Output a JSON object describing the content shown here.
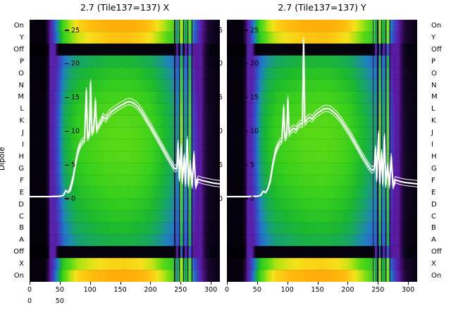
{
  "figure": {
    "bg": "#ffffff",
    "dipole_label": "Dipole",
    "line_color": "#ffffff"
  },
  "dipole_rows": [
    "On",
    "Y",
    "Off",
    "P",
    "O",
    "N",
    "M",
    "L",
    "K",
    "J",
    "I",
    "H",
    "G",
    "F",
    "E",
    "D",
    "C",
    "B",
    "A",
    "Off",
    "X",
    "On"
  ],
  "line_ticks": [
    25,
    20,
    15,
    10,
    5,
    0
  ],
  "extra_ticks": [
    0,
    50
  ],
  "palette": [
    [
      0.0,
      "#000004"
    ],
    [
      0.05,
      "#0a0418"
    ],
    [
      0.12,
      "#1f0838"
    ],
    [
      0.2,
      "#3d0d66"
    ],
    [
      0.28,
      "#5a1ba4"
    ],
    [
      0.36,
      "#4936bc"
    ],
    [
      0.44,
      "#2e57c8"
    ],
    [
      0.52,
      "#1f82be"
    ],
    [
      0.6,
      "#17a468"
    ],
    [
      0.68,
      "#1cb92e"
    ],
    [
      0.76,
      "#37cf1d"
    ],
    [
      0.84,
      "#58d916"
    ],
    [
      0.92,
      "#b4e312"
    ],
    [
      0.98,
      "#f6e11a"
    ],
    [
      1.06,
      "#ffbb0e"
    ],
    [
      1.25,
      "#ff8c00"
    ]
  ],
  "chart_data": [
    {
      "type": "heatmap+line",
      "title": "2.7 (Tile137=137) X",
      "x_range": [
        0,
        315
      ],
      "x_ticks": [
        0,
        50,
        100,
        150,
        200,
        250,
        300
      ],
      "line_value_ticks": [
        0,
        5,
        10,
        15,
        20,
        25
      ],
      "rows": [
        "On",
        "Y",
        "Off",
        "P",
        "O",
        "N",
        "M",
        "L",
        "K",
        "J",
        "I",
        "H",
        "G",
        "F",
        "E",
        "D",
        "C",
        "B",
        "A",
        "Off",
        "X",
        "On"
      ],
      "row_factors": [
        1.3,
        1.22,
        0.03,
        0.78,
        0.84,
        0.88,
        0.92,
        0.95,
        0.97,
        0.98,
        0.98,
        0.97,
        0.95,
        0.93,
        0.9,
        0.87,
        0.84,
        0.8,
        0.76,
        0.03,
        1.18,
        1.3
      ],
      "x_profile": [
        [
          0,
          0.02
        ],
        [
          26,
          0.02
        ],
        [
          33,
          0.18
        ],
        [
          40,
          0.32
        ],
        [
          48,
          0.46
        ],
        [
          56,
          0.62
        ],
        [
          68,
          0.71
        ],
        [
          80,
          0.77
        ],
        [
          100,
          0.81
        ],
        [
          130,
          0.85
        ],
        [
          160,
          0.86
        ],
        [
          180,
          0.84
        ],
        [
          200,
          0.8
        ],
        [
          215,
          0.74
        ],
        [
          228,
          0.68
        ],
        [
          240,
          0.63
        ],
        [
          252,
          0.6
        ],
        [
          262,
          0.56
        ],
        [
          268,
          0.46
        ],
        [
          278,
          0.3
        ],
        [
          288,
          0.18
        ],
        [
          296,
          0.08
        ],
        [
          315,
          0.03
        ]
      ],
      "band_profile": [
        [
          0,
          0
        ],
        [
          30,
          0
        ],
        [
          34,
          0.3
        ],
        [
          42,
          0.3
        ],
        [
          48,
          0
        ],
        [
          256,
          0
        ],
        [
          263,
          0.26
        ],
        [
          284,
          0.28
        ],
        [
          292,
          0.1
        ],
        [
          300,
          0.02
        ],
        [
          315,
          0.02
        ]
      ],
      "stripes": [
        [
          239,
          2,
          0.16
        ],
        [
          243,
          3,
          0.55
        ],
        [
          247,
          2,
          0.1
        ],
        [
          250,
          3,
          0.92
        ],
        [
          254,
          2,
          0.16
        ],
        [
          257,
          3,
          0.6
        ],
        [
          261,
          2,
          0.1
        ],
        [
          264,
          3,
          0.85
        ],
        [
          268,
          2,
          0.12
        ]
      ],
      "line": [
        [
          0,
          0.3
        ],
        [
          30,
          0.3
        ],
        [
          50,
          0.35
        ],
        [
          56,
          0.5
        ],
        [
          60,
          1.2
        ],
        [
          64,
          0.9
        ],
        [
          68,
          1.6
        ],
        [
          72,
          3.0
        ],
        [
          76,
          5.2
        ],
        [
          80,
          7.0
        ],
        [
          84,
          8.0
        ],
        [
          88,
          8.5
        ],
        [
          91,
          8.8
        ],
        [
          94,
          16.0
        ],
        [
          96,
          9.0
        ],
        [
          99,
          9.5
        ],
        [
          101,
          17.2
        ],
        [
          103,
          9.8
        ],
        [
          106,
          10.3
        ],
        [
          109,
          14.5
        ],
        [
          111,
          10.2
        ],
        [
          114,
          10.8
        ],
        [
          118,
          11.4
        ],
        [
          122,
          12.2
        ],
        [
          126,
          11.8
        ],
        [
          130,
          12.4
        ],
        [
          135,
          12.9
        ],
        [
          140,
          13.2
        ],
        [
          145,
          13.5
        ],
        [
          150,
          13.8
        ],
        [
          155,
          14.0
        ],
        [
          160,
          14.3
        ],
        [
          165,
          14.4
        ],
        [
          170,
          14.3
        ],
        [
          175,
          14.0
        ],
        [
          180,
          13.6
        ],
        [
          185,
          13.0
        ],
        [
          190,
          12.3
        ],
        [
          195,
          11.5
        ],
        [
          200,
          10.8
        ],
        [
          205,
          10.0
        ],
        [
          210,
          9.2
        ],
        [
          215,
          8.4
        ],
        [
          220,
          7.6
        ],
        [
          225,
          6.8
        ],
        [
          230,
          6.0
        ],
        [
          234,
          5.4
        ],
        [
          238,
          4.8
        ],
        [
          241,
          4.4
        ],
        [
          244,
          4.6
        ],
        [
          246,
          8.2
        ],
        [
          248,
          3.0
        ],
        [
          251,
          7.6
        ],
        [
          253,
          2.6
        ],
        [
          256,
          6.2
        ],
        [
          258,
          2.3
        ],
        [
          261,
          8.8
        ],
        [
          263,
          2.1
        ],
        [
          266,
          5.2
        ],
        [
          269,
          2.0
        ],
        [
          272,
          6.6
        ],
        [
          275,
          1.9
        ],
        [
          279,
          2.9
        ],
        [
          285,
          2.7
        ],
        [
          295,
          2.5
        ],
        [
          305,
          2.3
        ],
        [
          315,
          2.2
        ]
      ]
    },
    {
      "type": "heatmap+line",
      "title": "2.7 (Tile137=137) Y",
      "x_range": [
        0,
        315
      ],
      "x_ticks": [
        0,
        50,
        100,
        150,
        200,
        250,
        300
      ],
      "line_value_ticks": [
        0,
        5,
        10,
        15,
        20,
        25
      ],
      "rows": [
        "On",
        "Y",
        "Off",
        "P",
        "O",
        "N",
        "M",
        "L",
        "K",
        "J",
        "I",
        "H",
        "G",
        "F",
        "E",
        "D",
        "C",
        "B",
        "A",
        "Off",
        "X",
        "On"
      ],
      "row_factors": [
        1.3,
        1.22,
        0.03,
        0.78,
        0.84,
        0.88,
        0.92,
        0.95,
        0.97,
        0.98,
        0.98,
        0.97,
        0.95,
        0.93,
        0.9,
        0.87,
        0.84,
        0.8,
        0.76,
        0.03,
        1.18,
        1.3
      ],
      "x_profile": [
        [
          0,
          0.02
        ],
        [
          26,
          0.02
        ],
        [
          33,
          0.18
        ],
        [
          40,
          0.32
        ],
        [
          48,
          0.46
        ],
        [
          56,
          0.62
        ],
        [
          68,
          0.71
        ],
        [
          80,
          0.77
        ],
        [
          100,
          0.81
        ],
        [
          130,
          0.85
        ],
        [
          160,
          0.86
        ],
        [
          180,
          0.84
        ],
        [
          200,
          0.8
        ],
        [
          215,
          0.74
        ],
        [
          228,
          0.68
        ],
        [
          240,
          0.63
        ],
        [
          252,
          0.6
        ],
        [
          262,
          0.56
        ],
        [
          268,
          0.46
        ],
        [
          278,
          0.3
        ],
        [
          288,
          0.18
        ],
        [
          296,
          0.08
        ],
        [
          315,
          0.03
        ]
      ],
      "band_profile": [
        [
          0,
          0
        ],
        [
          30,
          0
        ],
        [
          34,
          0.3
        ],
        [
          42,
          0.3
        ],
        [
          48,
          0
        ],
        [
          256,
          0
        ],
        [
          263,
          0.26
        ],
        [
          284,
          0.28
        ],
        [
          292,
          0.1
        ],
        [
          300,
          0.02
        ],
        [
          315,
          0.02
        ]
      ],
      "stripes": [
        [
          241,
          2,
          0.16
        ],
        [
          245,
          3,
          0.6
        ],
        [
          249,
          2,
          0.12
        ],
        [
          252,
          2,
          0.9
        ],
        [
          255,
          2,
          0.16
        ],
        [
          258,
          3,
          0.65
        ],
        [
          262,
          2,
          0.1
        ],
        [
          265,
          3,
          0.88
        ],
        [
          269,
          2,
          0.12
        ]
      ],
      "line": [
        [
          0,
          0.3
        ],
        [
          30,
          0.3
        ],
        [
          50,
          0.35
        ],
        [
          56,
          0.5
        ],
        [
          60,
          1.1
        ],
        [
          64,
          0.9
        ],
        [
          68,
          1.5
        ],
        [
          72,
          2.8
        ],
        [
          76,
          5.0
        ],
        [
          80,
          6.8
        ],
        [
          84,
          7.8
        ],
        [
          88,
          8.4
        ],
        [
          91,
          8.7
        ],
        [
          94,
          13.5
        ],
        [
          96,
          9.0
        ],
        [
          99,
          9.4
        ],
        [
          101,
          14.8
        ],
        [
          103,
          9.7
        ],
        [
          106,
          10.1
        ],
        [
          110,
          10.5
        ],
        [
          114,
          10.2
        ],
        [
          118,
          10.8
        ],
        [
          122,
          11.2
        ],
        [
          125,
          11.0
        ],
        [
          127,
          23.5
        ],
        [
          129,
          11.3
        ],
        [
          133,
          11.8
        ],
        [
          137,
          12.1
        ],
        [
          141,
          11.8
        ],
        [
          145,
          12.3
        ],
        [
          150,
          12.7
        ],
        [
          155,
          13.0
        ],
        [
          160,
          13.3
        ],
        [
          165,
          13.4
        ],
        [
          170,
          13.3
        ],
        [
          175,
          13.0
        ],
        [
          180,
          12.6
        ],
        [
          185,
          12.1
        ],
        [
          190,
          11.5
        ],
        [
          195,
          10.8
        ],
        [
          200,
          10.1
        ],
        [
          205,
          9.4
        ],
        [
          210,
          8.6
        ],
        [
          215,
          7.8
        ],
        [
          220,
          7.0
        ],
        [
          225,
          6.2
        ],
        [
          230,
          5.5
        ],
        [
          234,
          4.9
        ],
        [
          238,
          4.4
        ],
        [
          241,
          4.2
        ],
        [
          244,
          4.5
        ],
        [
          246,
          7.4
        ],
        [
          248,
          2.9
        ],
        [
          251,
          9.6
        ],
        [
          253,
          2.6
        ],
        [
          256,
          6.8
        ],
        [
          258,
          2.3
        ],
        [
          261,
          9.2
        ],
        [
          263,
          2.1
        ],
        [
          266,
          4.8
        ],
        [
          269,
          2.0
        ],
        [
          272,
          6.2
        ],
        [
          275,
          1.9
        ],
        [
          279,
          2.8
        ],
        [
          285,
          2.6
        ],
        [
          295,
          2.4
        ],
        [
          305,
          2.3
        ],
        [
          315,
          2.2
        ]
      ]
    }
  ]
}
